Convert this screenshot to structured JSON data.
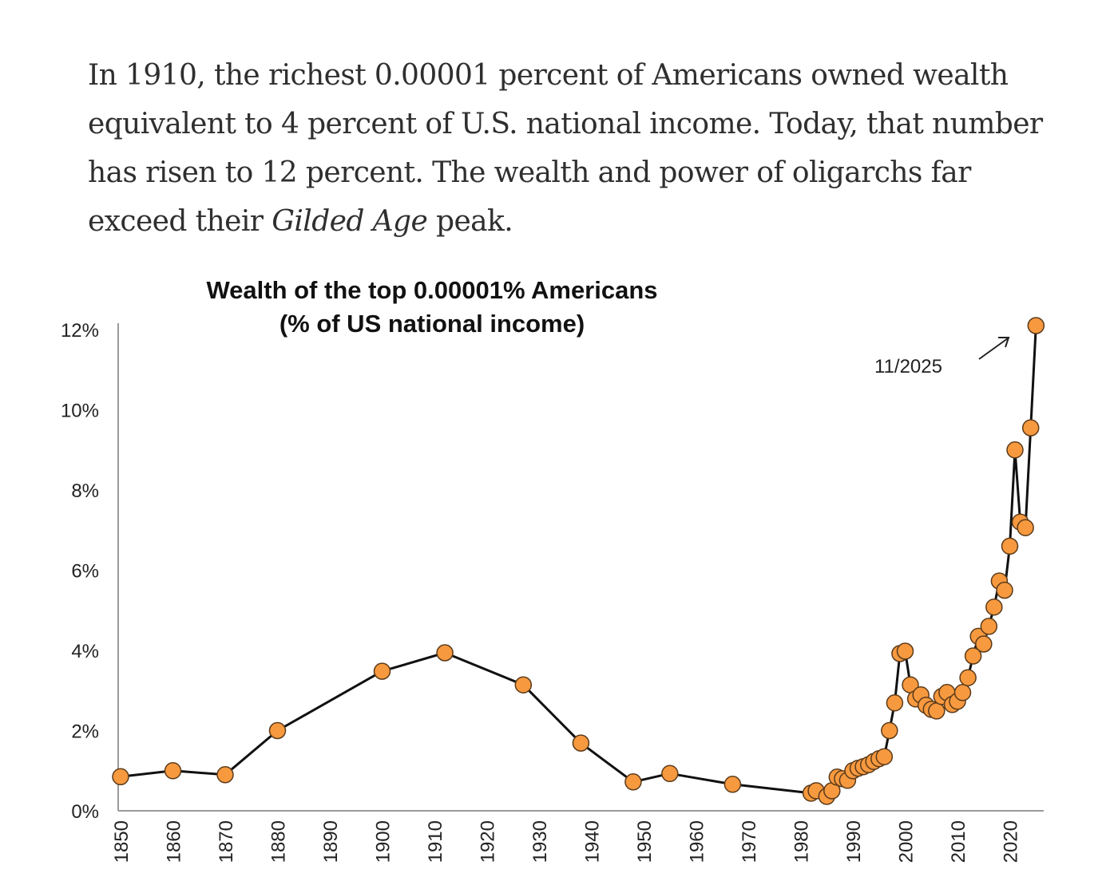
{
  "article": {
    "paragraph_before_italic": "In 1910, the richest 0.00001 percent of Americans owned wealth equivalent to 4 percent of U.S. national income. Today, that number has risen to 12 percent. The wealth and power of oligarchs far exceed their ",
    "italic_text": "Gilded Age",
    "paragraph_after_italic": " peak."
  },
  "chart_data": {
    "type": "line",
    "title": "Wealth of the top 0.00001% Americans",
    "subtitle": "(% of US national income)",
    "xlabel": "",
    "ylabel": "",
    "xlim": [
      1850,
      2026
    ],
    "ylim": [
      0,
      12
    ],
    "grid": false,
    "x_ticks": [
      "1850",
      "1860",
      "1870",
      "1880",
      "1890",
      "1900",
      "1910",
      "1920",
      "1930",
      "1940",
      "1950",
      "1960",
      "1970",
      "1980",
      "1990",
      "2000",
      "2010",
      "2020"
    ],
    "y_ticks": [
      "0%",
      "2%",
      "4%",
      "6%",
      "8%",
      "10%",
      "12%"
    ],
    "annotation": "11/2025",
    "colors": {
      "marker_fill": "#F7993F",
      "marker_stroke": "#5a3a1a",
      "line": "#111111",
      "axis": "#9a9a9a"
    },
    "series": [
      {
        "name": "Wealth of the top 0.00001% (% of US national income)",
        "x": [
          1850,
          1860,
          1870,
          1880,
          1900,
          1912,
          1927,
          1938,
          1948,
          1955,
          1967,
          1982,
          1983,
          1985,
          1986,
          1987,
          1988,
          1989,
          1990,
          1991,
          1992,
          1993,
          1994,
          1995,
          1996,
          1997,
          1998,
          1999,
          2000,
          2001,
          2002,
          2003,
          2004,
          2005,
          2006,
          2007,
          2008,
          2009,
          2010,
          2011,
          2012,
          2013,
          2014,
          2015,
          2016,
          2017,
          2018,
          2019,
          2020,
          2021,
          2022,
          2023,
          2024,
          2025
        ],
        "values": [
          0.85,
          1.0,
          0.9,
          2.0,
          3.48,
          3.94,
          3.14,
          1.69,
          0.72,
          0.93,
          0.66,
          0.44,
          0.5,
          0.36,
          0.5,
          0.84,
          0.8,
          0.76,
          1.0,
          1.06,
          1.1,
          1.15,
          1.23,
          1.3,
          1.35,
          2.0,
          2.69,
          3.92,
          3.98,
          3.14,
          2.79,
          2.89,
          2.63,
          2.53,
          2.49,
          2.85,
          2.95,
          2.65,
          2.73,
          2.95,
          3.32,
          3.86,
          4.35,
          4.16,
          4.6,
          5.08,
          5.73,
          5.5,
          6.6,
          9.0,
          7.2,
          7.06,
          9.55,
          12.1
        ]
      }
    ]
  }
}
